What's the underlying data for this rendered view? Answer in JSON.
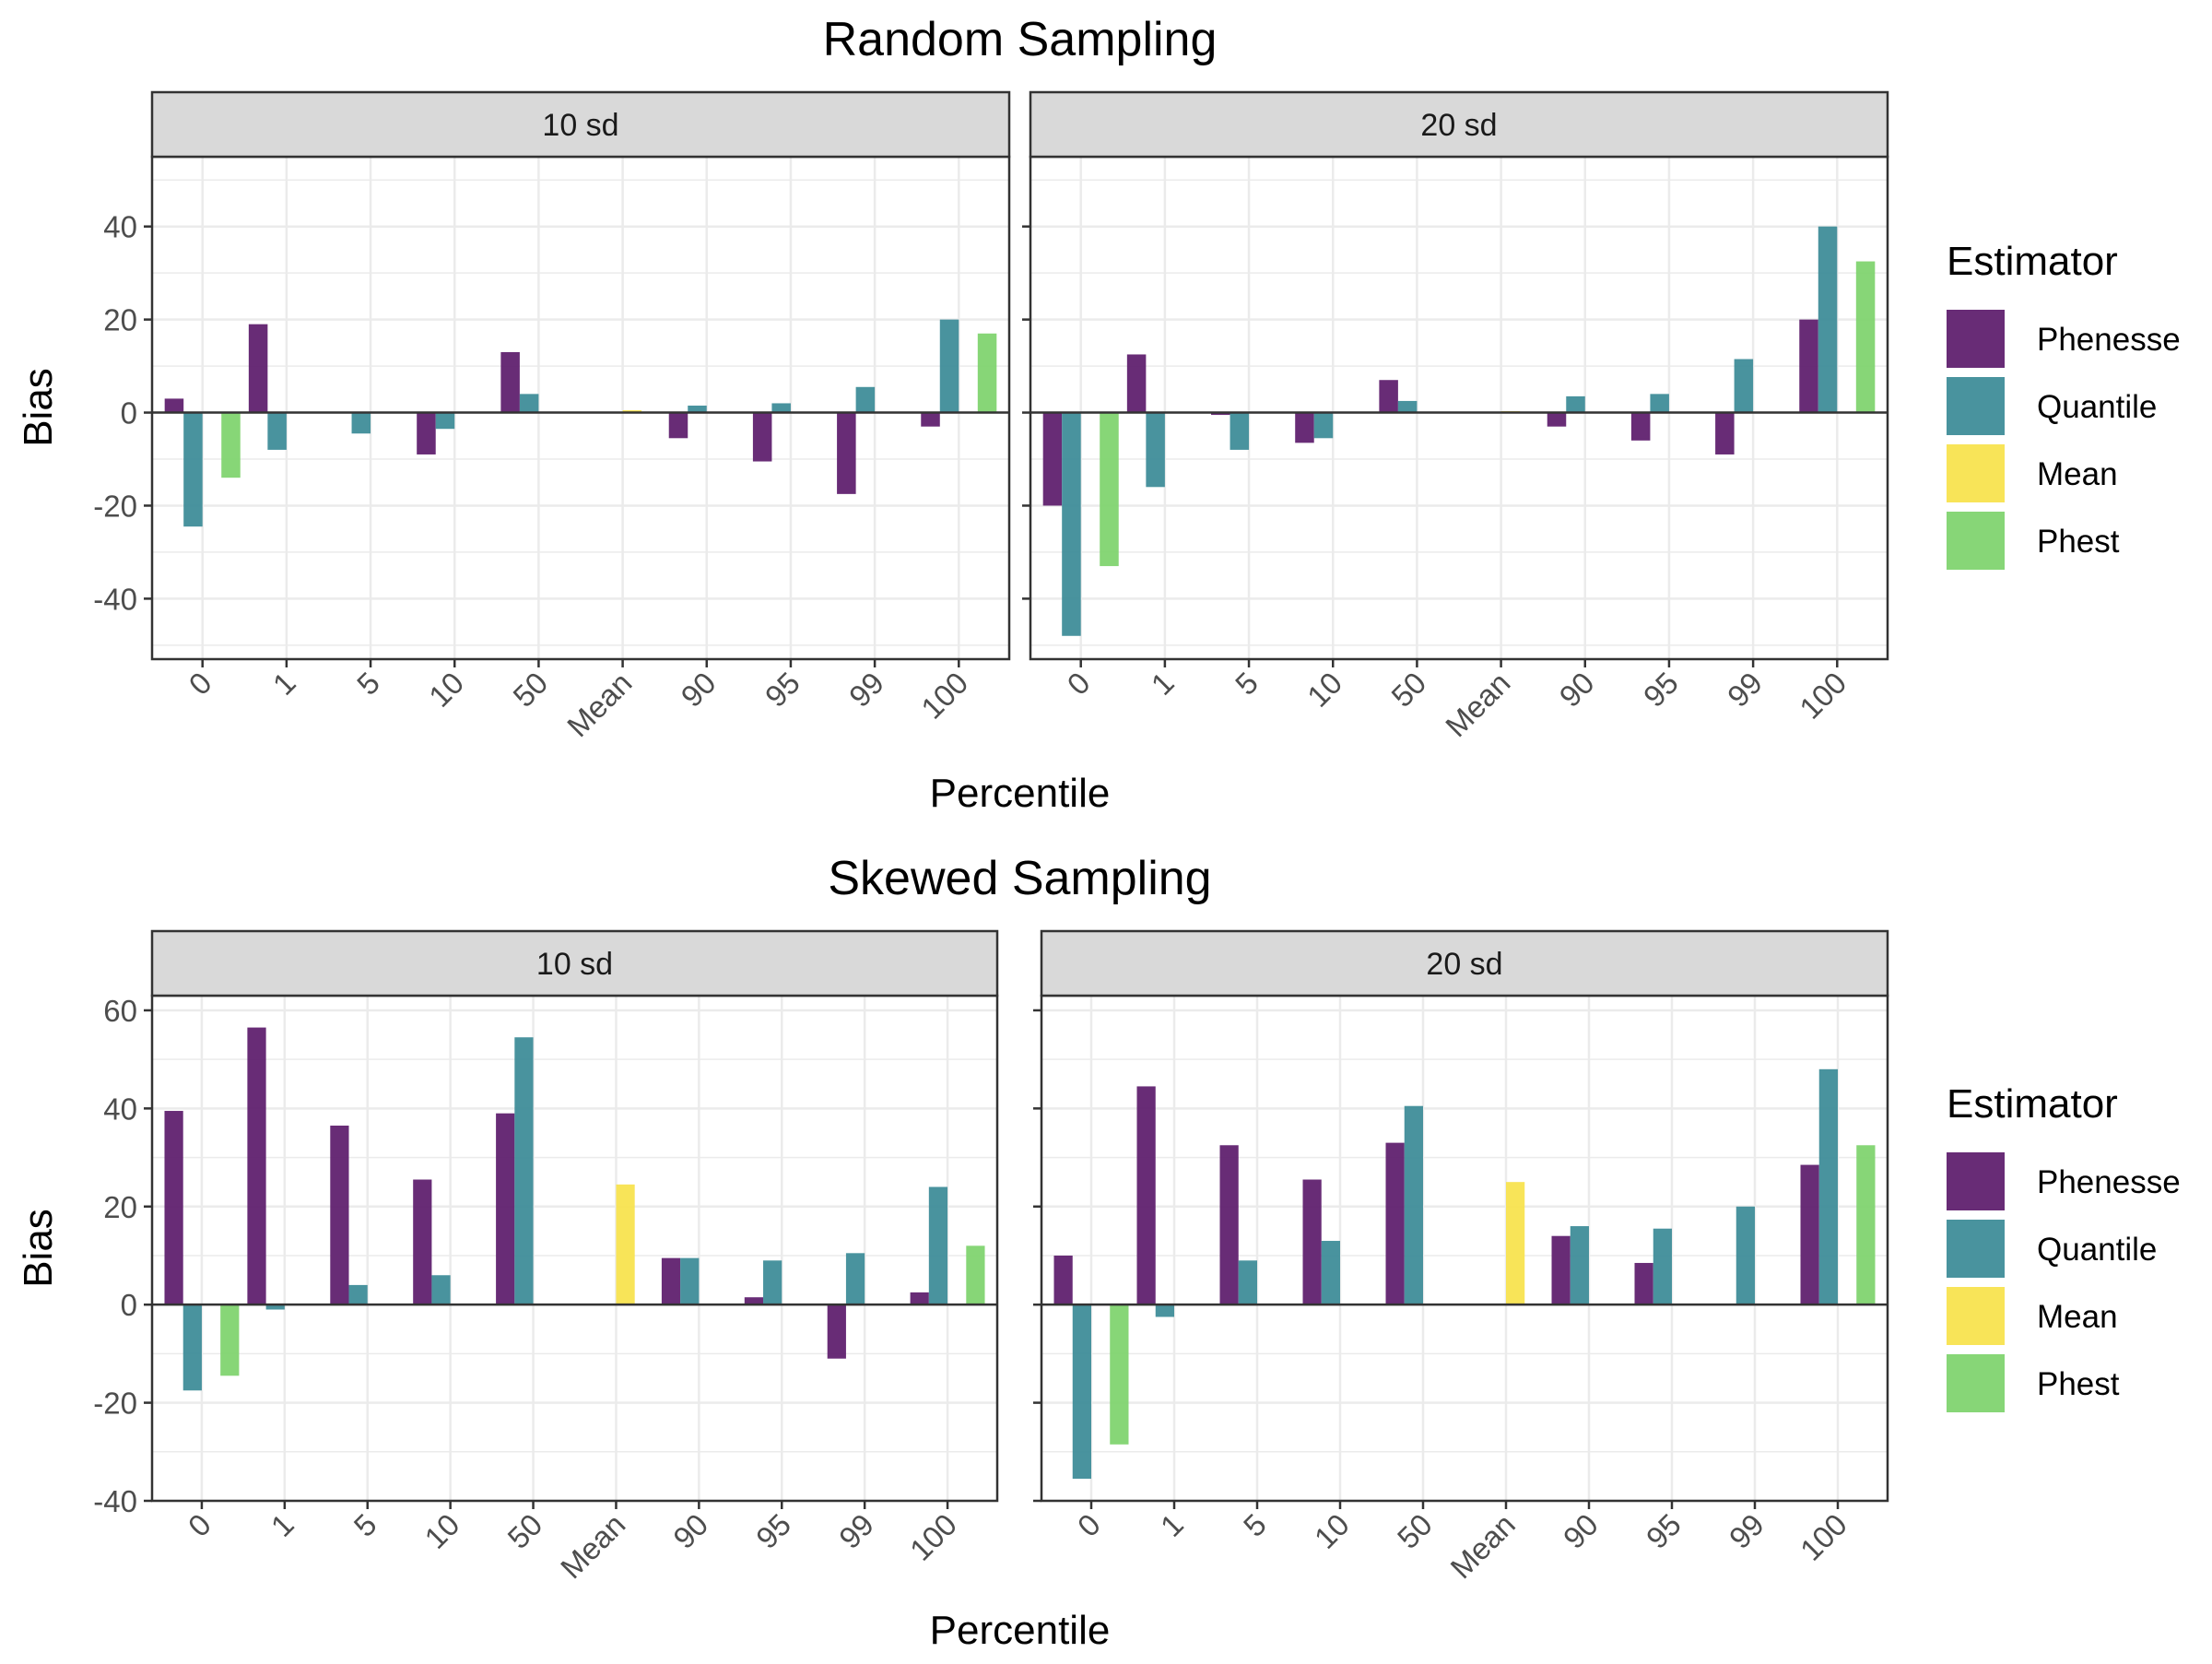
{
  "colors": {
    "Phenesse": "#5b1a6a",
    "Quantile": "#3a8a96",
    "Mean": "#f7e24a",
    "Phest": "#7dd36b",
    "strip_fill": "#d9d9d9",
    "grid": "#ebebeb",
    "border": "#333333"
  },
  "chart_data": [
    {
      "type": "bar",
      "title": "Random Sampling",
      "xlabel": "Percentile",
      "ylabel": "Bias",
      "ylim": [
        -53,
        55
      ],
      "yticks": [
        -40,
        -20,
        0,
        20,
        40
      ],
      "categories": [
        "0",
        "1",
        "5",
        "10",
        "50",
        "Mean",
        "90",
        "95",
        "99",
        "100"
      ],
      "legend": {
        "title": "Estimator",
        "items": [
          "Phenesse",
          "Quantile",
          "Mean",
          "Phest"
        ],
        "position": "right"
      },
      "facets": [
        {
          "label": "10 sd",
          "series": [
            {
              "name": "Phenesse",
              "values": [
                3,
                19,
                null,
                -9,
                13,
                null,
                -5.5,
                -10.5,
                -17.5,
                -3
              ]
            },
            {
              "name": "Quantile",
              "values": [
                -24.5,
                -8,
                -4.5,
                -3.5,
                4,
                null,
                1.5,
                2,
                5.5,
                20
              ]
            },
            {
              "name": "Mean",
              "values": [
                null,
                null,
                null,
                null,
                null,
                0.5,
                null,
                null,
                null,
                null
              ]
            },
            {
              "name": "Phest",
              "values": [
                -14,
                null,
                null,
                null,
                null,
                null,
                null,
                null,
                null,
                17
              ]
            }
          ]
        },
        {
          "label": "20 sd",
          "series": [
            {
              "name": "Phenesse",
              "values": [
                -20,
                12.5,
                -0.5,
                -6.5,
                7,
                null,
                -3,
                -6,
                -9,
                20
              ]
            },
            {
              "name": "Quantile",
              "values": [
                -48,
                -16,
                -8,
                -5.5,
                2.5,
                null,
                3.5,
                4,
                11.5,
                40
              ]
            },
            {
              "name": "Mean",
              "values": [
                null,
                null,
                null,
                null,
                null,
                0.3,
                null,
                null,
                null,
                null
              ]
            },
            {
              "name": "Phest",
              "values": [
                -33,
                null,
                null,
                null,
                null,
                null,
                null,
                null,
                null,
                32.5
              ]
            }
          ]
        }
      ]
    },
    {
      "type": "bar",
      "title": "Skewed Sampling",
      "xlabel": "Percentile",
      "ylabel": "Bias",
      "ylim": [
        -40,
        63
      ],
      "yticks": [
        -40,
        -20,
        0,
        20,
        40,
        60
      ],
      "categories": [
        "0",
        "1",
        "5",
        "10",
        "50",
        "Mean",
        "90",
        "95",
        "99",
        "100"
      ],
      "legend": {
        "title": "Estimator",
        "items": [
          "Phenesse",
          "Quantile",
          "Mean",
          "Phest"
        ],
        "position": "right"
      },
      "facets": [
        {
          "label": "10 sd",
          "series": [
            {
              "name": "Phenesse",
              "values": [
                39.5,
                56.5,
                36.5,
                25.5,
                39,
                null,
                9.5,
                1.5,
                -11,
                2.5
              ]
            },
            {
              "name": "Quantile",
              "values": [
                -17.5,
                -1,
                4,
                6,
                54.5,
                null,
                9.5,
                9,
                10.5,
                24
              ]
            },
            {
              "name": "Mean",
              "values": [
                null,
                null,
                null,
                null,
                null,
                24.5,
                null,
                null,
                null,
                null
              ]
            },
            {
              "name": "Phest",
              "values": [
                -14.5,
                null,
                null,
                null,
                null,
                null,
                null,
                null,
                null,
                12
              ]
            }
          ]
        },
        {
          "label": "20 sd",
          "series": [
            {
              "name": "Phenesse",
              "values": [
                10,
                44.5,
                32.5,
                25.5,
                33,
                null,
                14,
                8.5,
                null,
                28.5
              ]
            },
            {
              "name": "Quantile",
              "values": [
                -35.5,
                -2.5,
                9,
                13,
                40.5,
                null,
                16,
                15.5,
                20,
                48
              ]
            },
            {
              "name": "Mean",
              "values": [
                null,
                null,
                null,
                null,
                null,
                25,
                null,
                null,
                null,
                null
              ]
            },
            {
              "name": "Phest",
              "values": [
                -28.5,
                null,
                null,
                null,
                null,
                null,
                null,
                null,
                null,
                32.5
              ]
            }
          ]
        }
      ]
    }
  ]
}
